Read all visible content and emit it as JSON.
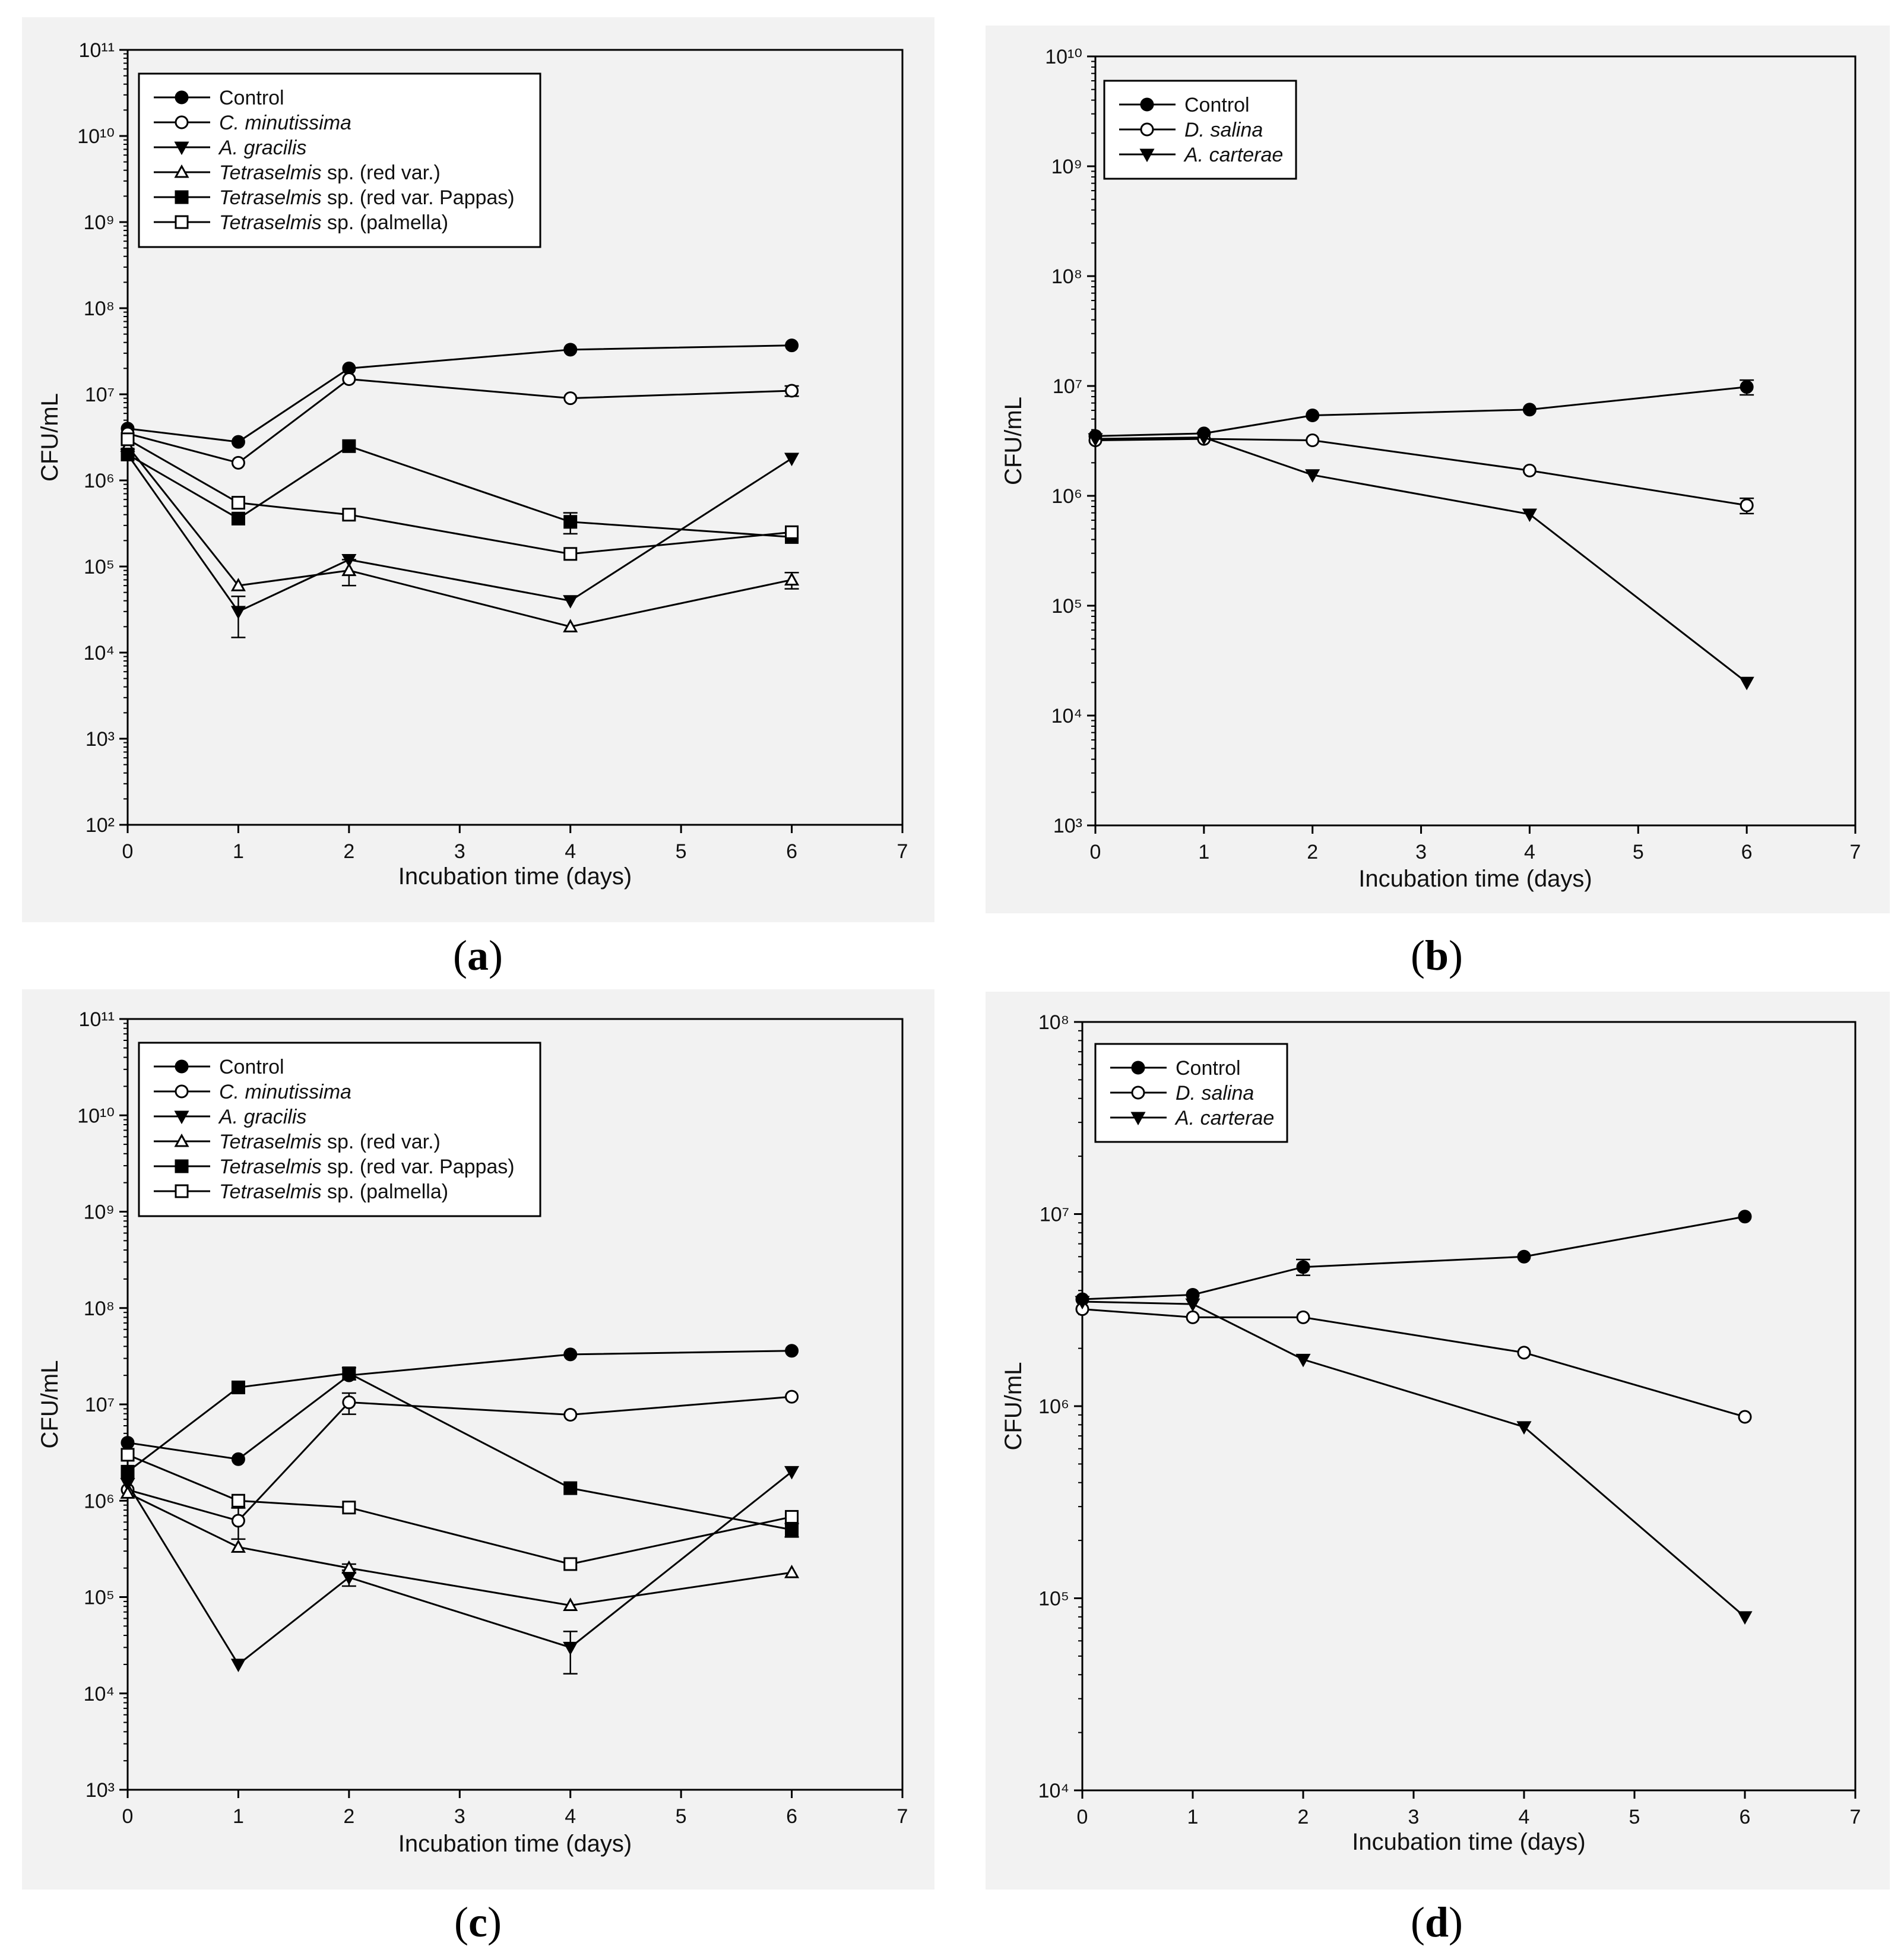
{
  "chart_data": [
    {
      "type": "line",
      "panel": "a",
      "caption_letter": "a",
      "xlabel": "Incubation time (days)",
      "ylabel": "CFU/mL",
      "xlim": [
        0,
        7
      ],
      "ylim_exp": [
        2,
        11
      ],
      "x_ticks": [
        "0",
        "1",
        "2",
        "3",
        "4",
        "5",
        "6",
        "7"
      ],
      "legend_position": "top-left",
      "x": [
        0,
        1,
        2,
        4,
        6
      ],
      "series": [
        {
          "name": "Control",
          "italic": "",
          "suffix": "",
          "marker": "filled-circle",
          "values": [
            4000000,
            2800000,
            20000000,
            33000000,
            37000000
          ],
          "errors": [
            0,
            0,
            0,
            0,
            0
          ]
        },
        {
          "name": "C. minutissima",
          "italic": "C. minutissima",
          "suffix": "",
          "marker": "open-circle",
          "values": [
            3500000,
            1600000,
            15000000,
            9000000,
            11000000
          ],
          "errors": [
            0,
            0,
            0,
            0,
            1500000
          ]
        },
        {
          "name": "A. gracilis",
          "italic": "A. gracilis",
          "suffix": "",
          "marker": "filled-triangle-down",
          "values": [
            2000000,
            30000,
            120000,
            40000,
            1800000
          ],
          "errors": [
            0,
            15000,
            0,
            0,
            0
          ]
        },
        {
          "name": "Tetraselmis sp. (red var.)",
          "italic": "Tetraselmis",
          "suffix": " sp. (red var.)",
          "marker": "open-triangle-up",
          "values": [
            2500000,
            60000,
            90000,
            20000,
            70000
          ],
          "errors": [
            0,
            0,
            30000,
            0,
            15000
          ]
        },
        {
          "name": "Tetraselmis sp. (red var. Pappas)",
          "italic": "Tetraselmis",
          "suffix": " sp. (red var. Pappas)",
          "marker": "filled-square",
          "values": [
            2000000,
            360000,
            2500000,
            330000,
            220000
          ],
          "errors": [
            0,
            0,
            0,
            90000,
            0
          ]
        },
        {
          "name": "Tetraselmis sp. (palmella)",
          "italic": "Tetraselmis",
          "suffix": " sp. (palmella)",
          "marker": "open-square",
          "values": [
            3000000,
            550000,
            400000,
            140000,
            250000
          ],
          "errors": [
            0,
            0,
            0,
            0,
            0
          ]
        }
      ]
    },
    {
      "type": "line",
      "panel": "b",
      "caption_letter": "b",
      "xlabel": "Incubation time (days)",
      "ylabel": "CFU/mL",
      "xlim": [
        0,
        7
      ],
      "ylim_exp": [
        3,
        10
      ],
      "x_ticks": [
        "0",
        "1",
        "2",
        "3",
        "4",
        "5",
        "6",
        "7"
      ],
      "legend_position": "top-left",
      "x": [
        0,
        1,
        2,
        4,
        6
      ],
      "series": [
        {
          "name": "Control",
          "italic": "",
          "suffix": "",
          "marker": "filled-circle",
          "values": [
            3500000,
            3700000,
            5400000,
            6100000,
            9800000
          ],
          "errors": [
            0,
            0,
            0,
            0,
            1500000
          ]
        },
        {
          "name": "D. salina",
          "italic": "D. salina",
          "suffix": "",
          "marker": "open-circle",
          "values": [
            3200000,
            3300000,
            3200000,
            1700000,
            820000
          ],
          "errors": [
            0,
            0,
            0,
            0,
            130000
          ]
        },
        {
          "name": "A. carterae",
          "italic": "A. carterae",
          "suffix": "",
          "marker": "filled-triangle-down",
          "values": [
            3300000,
            3400000,
            1550000,
            680000,
            20000
          ],
          "errors": [
            0,
            0,
            0,
            0,
            0
          ]
        }
      ]
    },
    {
      "type": "line",
      "panel": "c",
      "caption_letter": "c",
      "xlabel": "Incubation time (days)",
      "ylabel": "CFU/mL",
      "xlim": [
        0,
        7
      ],
      "ylim_exp": [
        3,
        11
      ],
      "x_ticks": [
        "0",
        "1",
        "2",
        "3",
        "4",
        "5",
        "6",
        "7"
      ],
      "legend_position": "top-left",
      "x": [
        0,
        1,
        2,
        4,
        6
      ],
      "series": [
        {
          "name": "Control",
          "italic": "",
          "suffix": "",
          "marker": "filled-circle",
          "values": [
            4000000,
            2700000,
            20000000,
            33000000,
            36000000
          ],
          "errors": [
            0,
            0,
            0,
            0,
            0
          ]
        },
        {
          "name": "C. minutissima",
          "italic": "C. minutissima",
          "suffix": "",
          "marker": "open-circle",
          "values": [
            1300000,
            620000,
            10500000,
            7800000,
            12000000
          ],
          "errors": [
            0,
            220000,
            2600000,
            0,
            0
          ]
        },
        {
          "name": "A. gracilis",
          "italic": "A. gracilis",
          "suffix": "",
          "marker": "filled-triangle-down",
          "values": [
            1500000,
            20000,
            160000,
            30000,
            2000000
          ],
          "errors": [
            0,
            0,
            30000,
            14000,
            0
          ]
        },
        {
          "name": "Tetraselmis sp. (red var.)",
          "italic": "Tetraselmis",
          "suffix": " sp. (red var.)",
          "marker": "open-triangle-up",
          "values": [
            1200000,
            330000,
            200000,
            82000,
            180000
          ],
          "errors": [
            0,
            0,
            20000,
            0,
            0
          ]
        },
        {
          "name": "Tetraselmis sp. (red var. Pappas)",
          "italic": "Tetraselmis",
          "suffix": " sp. (red var. Pappas)",
          "marker": "filled-square",
          "values": [
            2000000,
            15000000,
            21000000,
            1350000,
            500000
          ],
          "errors": [
            0,
            0,
            3000000,
            0,
            80000
          ]
        },
        {
          "name": "Tetraselmis sp. (palmella)",
          "italic": "Tetraselmis",
          "suffix": " sp. (palmella)",
          "marker": "open-square",
          "values": [
            3000000,
            1000000,
            850000,
            220000,
            680000
          ],
          "errors": [
            0,
            0,
            0,
            0,
            0
          ]
        }
      ]
    },
    {
      "type": "line",
      "panel": "d",
      "caption_letter": "d",
      "xlabel": "Incubation time (days)",
      "ylabel": "CFU/mL",
      "xlim": [
        0,
        7
      ],
      "ylim_exp": [
        4,
        8
      ],
      "x_ticks": [
        "0",
        "1",
        "2",
        "3",
        "4",
        "5",
        "6",
        "7"
      ],
      "legend_position": "top-left",
      "x": [
        0,
        1,
        2,
        4,
        6
      ],
      "series": [
        {
          "name": "Control",
          "italic": "",
          "suffix": "",
          "marker": "filled-circle",
          "values": [
            3600000,
            3800000,
            5300000,
            6000000,
            9700000
          ],
          "errors": [
            0,
            0,
            500000,
            0,
            0
          ]
        },
        {
          "name": "D. salina",
          "italic": "D. salina",
          "suffix": "",
          "marker": "open-circle",
          "values": [
            3200000,
            2900000,
            2900000,
            1900000,
            880000
          ],
          "errors": [
            0,
            0,
            0,
            0,
            0
          ]
        },
        {
          "name": "A. carterae",
          "italic": "A. carterae",
          "suffix": "",
          "marker": "filled-triangle-down",
          "values": [
            3500000,
            3400000,
            1750000,
            780000,
            80000
          ],
          "errors": [
            0,
            0,
            0,
            0,
            0
          ]
        }
      ]
    }
  ]
}
